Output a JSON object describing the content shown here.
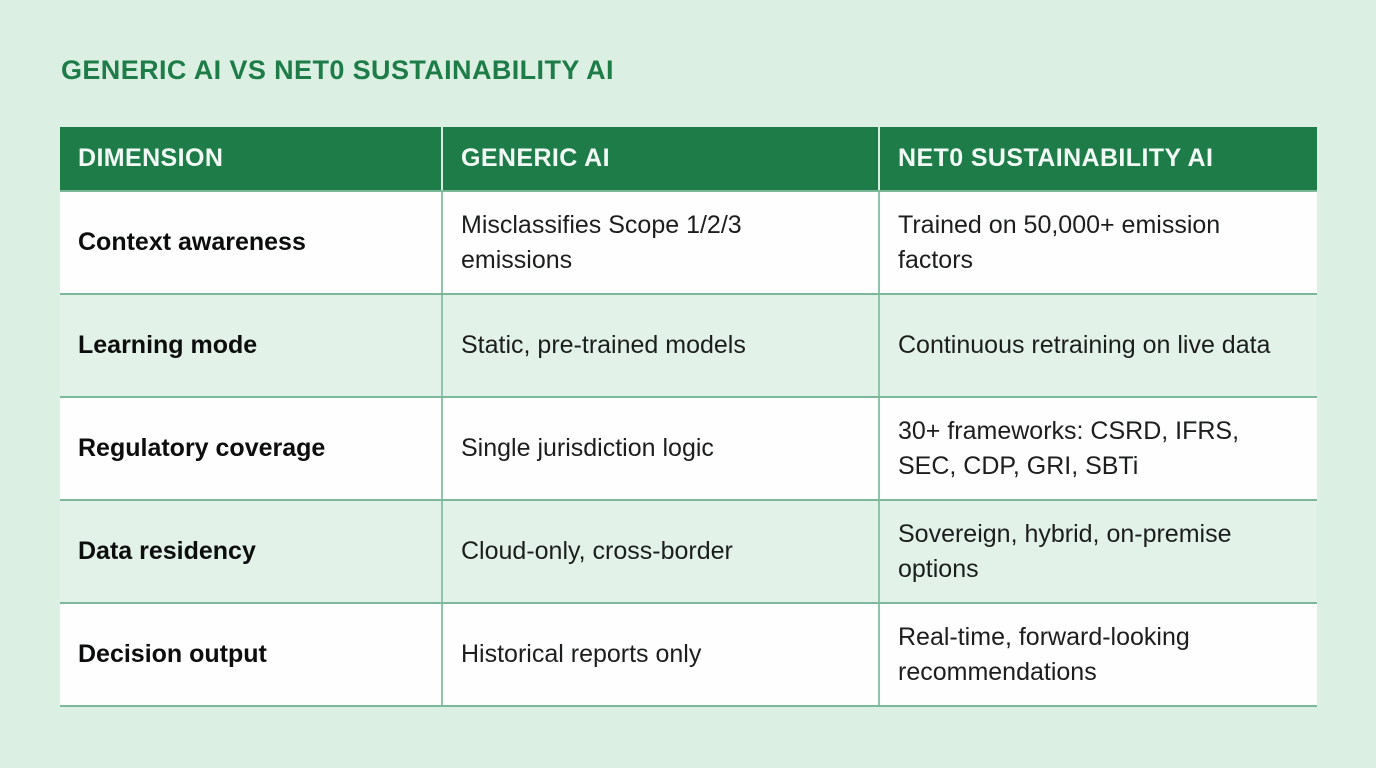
{
  "page": {
    "title": "GENERIC AI VS NET0 SUSTAINABILITY AI"
  },
  "colors": {
    "page_background": "#dcefe3",
    "header_background": "#1e7c49",
    "title_text": "#1e7c49",
    "header_text": "#f2faf5",
    "row_white": "#fdfefd",
    "row_alt_mint": "#e3f2e9",
    "grid_border": "#7cb899",
    "body_text": "#1c1e1d"
  },
  "table": {
    "columns": [
      "DIMENSION",
      "GENERIC AI",
      "NET0 SUSTAINABILITY AI"
    ],
    "rows": [
      [
        "Context awareness",
        "Misclassifies Scope 1/2/3 emissions",
        "Trained on 50,000+ emission factors"
      ],
      [
        "Learning mode",
        "Static, pre-trained models",
        "Continuous retraining on live data"
      ],
      [
        "Regulatory coverage",
        "Single jurisdiction logic",
        "30+ frameworks: CSRD, IFRS, SEC, CDP, GRI, SBTi"
      ],
      [
        "Data residency",
        "Cloud-only, cross-border",
        "Sovereign, hybrid, on-premise options"
      ],
      [
        "Decision output",
        "Historical reports only",
        "Real-time, forward-looking recommendations"
      ]
    ]
  }
}
